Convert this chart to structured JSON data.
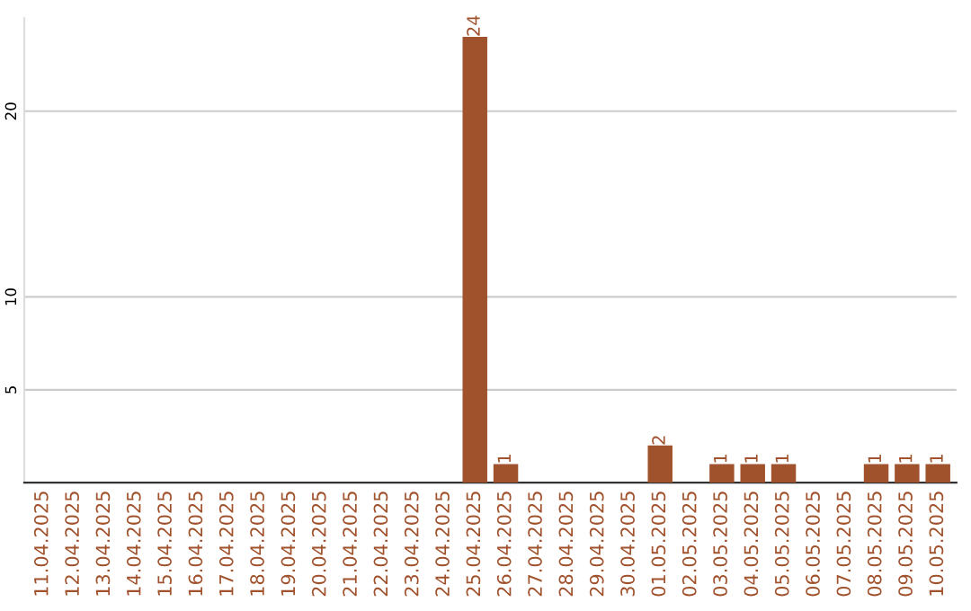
{
  "chart_data": {
    "type": "bar",
    "categories": [
      "11.04.2025",
      "12.04.2025",
      "13.04.2025",
      "14.04.2025",
      "15.04.2025",
      "16.04.2025",
      "17.04.2025",
      "18.04.2025",
      "19.04.2025",
      "20.04.2025",
      "21.04.2025",
      "22.04.2025",
      "23.04.2025",
      "24.04.2025",
      "25.04.2025",
      "26.04.2025",
      "27.04.2025",
      "28.04.2025",
      "29.04.2025",
      "30.04.2025",
      "01.05.2025",
      "02.05.2025",
      "03.05.2025",
      "04.05.2025",
      "05.05.2025",
      "06.05.2025",
      "07.05.2025",
      "08.05.2025",
      "09.05.2025",
      "10.05.2025"
    ],
    "values": [
      0,
      0,
      0,
      0,
      0,
      0,
      0,
      0,
      0,
      0,
      0,
      0,
      0,
      0,
      24,
      1,
      0,
      0,
      0,
      0,
      2,
      0,
      1,
      1,
      1,
      0,
      0,
      1,
      1,
      1
    ],
    "value_labels": [
      null,
      null,
      null,
      null,
      null,
      null,
      null,
      null,
      null,
      null,
      null,
      null,
      null,
      null,
      "24",
      "1",
      null,
      null,
      null,
      null,
      "2",
      null,
      "1",
      "1",
      "1",
      null,
      null,
      "1",
      "1",
      "1"
    ],
    "color": "#a0522d",
    "ylim": [
      0,
      25
    ],
    "yticks": [
      5,
      10,
      20
    ],
    "grid": "y"
  }
}
